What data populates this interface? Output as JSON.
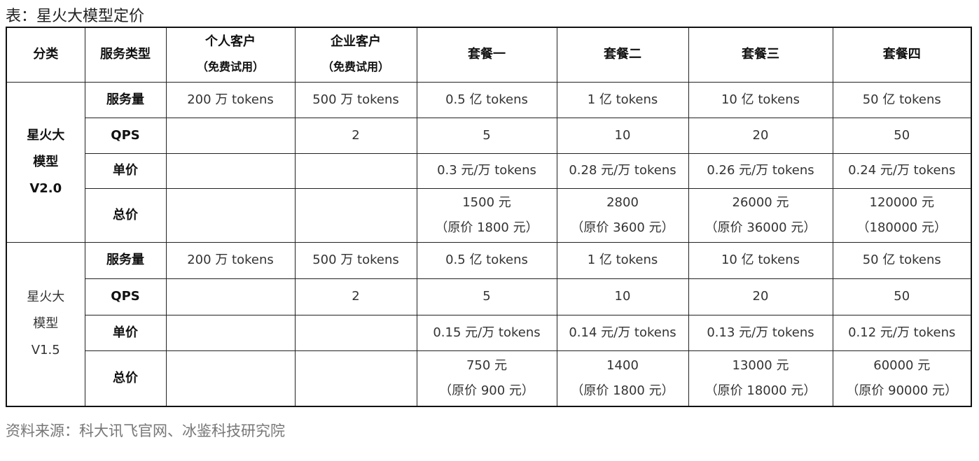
{
  "title": "表：星火大模型定价",
  "headers": [
    {
      "lines": [
        "分类"
      ]
    },
    {
      "lines": [
        "服务类型"
      ]
    },
    {
      "lines": [
        "个人客户",
        "（免费试用）"
      ]
    },
    {
      "lines": [
        "企业客户",
        "（免费试用）"
      ]
    },
    {
      "lines": [
        "套餐一"
      ]
    },
    {
      "lines": [
        "套餐二"
      ]
    },
    {
      "lines": [
        "套餐三"
      ]
    },
    {
      "lines": [
        "套餐四"
      ]
    }
  ],
  "groups": [
    {
      "category": [
        "星火大",
        "模型",
        "V2.0"
      ],
      "category_bold": true,
      "rows": [
        {
          "type": "服务量",
          "cells": [
            [
              "200 万 tokens"
            ],
            [
              "500 万 tokens"
            ],
            [
              "0.5 亿 tokens"
            ],
            [
              "1 亿 tokens"
            ],
            [
              "10 亿 tokens"
            ],
            [
              "50 亿 tokens"
            ]
          ]
        },
        {
          "type": "QPS",
          "cells": [
            [
              ""
            ],
            [
              "2"
            ],
            [
              "5"
            ],
            [
              "10"
            ],
            [
              "20"
            ],
            [
              "50"
            ]
          ]
        },
        {
          "type": "单价",
          "cells": [
            [
              ""
            ],
            [
              ""
            ],
            [
              "0.3 元/万 tokens"
            ],
            [
              "0.28 元/万 tokens"
            ],
            [
              "0.26 元/万 tokens"
            ],
            [
              "0.24 元/万 tokens"
            ]
          ]
        },
        {
          "type": "总价",
          "cells": [
            [
              ""
            ],
            [
              ""
            ],
            [
              "1500 元",
              "（原价 1800 元）"
            ],
            [
              "2800",
              "（原价 3600 元）"
            ],
            [
              "26000 元",
              "（原价 36000 元）"
            ],
            [
              "120000 元",
              "（180000 元）"
            ]
          ]
        }
      ]
    },
    {
      "category": [
        "星火大",
        "模型",
        "V1.5"
      ],
      "category_bold": false,
      "rows": [
        {
          "type": "服务量",
          "cells": [
            [
              "200 万 tokens"
            ],
            [
              "500 万 tokens"
            ],
            [
              "0.5 亿 tokens"
            ],
            [
              "1 亿 tokens"
            ],
            [
              "10 亿 tokens"
            ],
            [
              "50 亿 tokens"
            ]
          ]
        },
        {
          "type": "QPS",
          "cells": [
            [
              ""
            ],
            [
              "2"
            ],
            [
              "5"
            ],
            [
              "10"
            ],
            [
              "20"
            ],
            [
              "50"
            ]
          ]
        },
        {
          "type": "单价",
          "cells": [
            [
              ""
            ],
            [
              ""
            ],
            [
              "0.15 元/万 tokens"
            ],
            [
              "0.14 元/万 tokens"
            ],
            [
              "0.13 元/万 tokens"
            ],
            [
              "0.12 元/万 tokens"
            ]
          ]
        },
        {
          "type": "总价",
          "cells": [
            [
              ""
            ],
            [
              ""
            ],
            [
              "750 元",
              "（原价 900 元）"
            ],
            [
              "1400",
              "（原价 1800 元）"
            ],
            [
              "13000 元",
              "（原价 18000 元）"
            ],
            [
              "60000 元",
              "（原价 90000 元）"
            ]
          ]
        }
      ]
    }
  ],
  "source": "资料来源：科大讯飞官网、冰鉴科技研究院"
}
